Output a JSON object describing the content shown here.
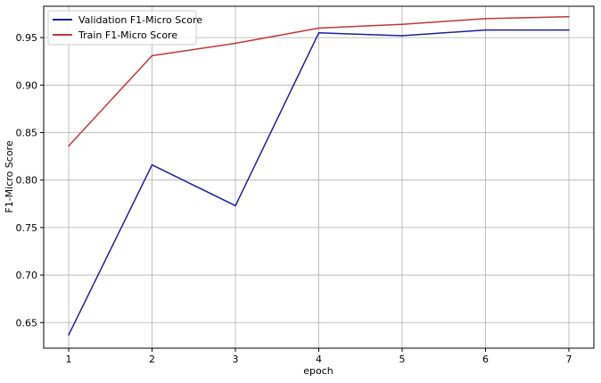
{
  "chart_data": {
    "type": "line",
    "title": "",
    "xlabel": "epoch",
    "ylabel": "F1-Micro Score",
    "x": [
      1,
      2,
      3,
      4,
      5,
      6,
      7
    ],
    "xticks": [
      "1",
      "2",
      "3",
      "4",
      "5",
      "6",
      "7"
    ],
    "xlim": [
      0.7,
      7.3
    ],
    "ylim": [
      0.623,
      0.983
    ],
    "yticks": [
      "0.65",
      "0.70",
      "0.75",
      "0.80",
      "0.85",
      "0.90",
      "0.95"
    ],
    "ytick_values": [
      0.65,
      0.7,
      0.75,
      0.8,
      0.85,
      0.9,
      0.95
    ],
    "grid": true,
    "legend_position": "top-left",
    "series": [
      {
        "name": "Validation F1-Micro Score",
        "color": "#1f1f9e",
        "values": [
          0.637,
          0.816,
          0.773,
          0.955,
          0.952,
          0.958,
          0.958
        ]
      },
      {
        "name": "Train F1-Micro Score",
        "color": "#c0393b",
        "values": [
          0.836,
          0.931,
          0.944,
          0.96,
          0.964,
          0.97,
          0.972
        ]
      }
    ]
  }
}
